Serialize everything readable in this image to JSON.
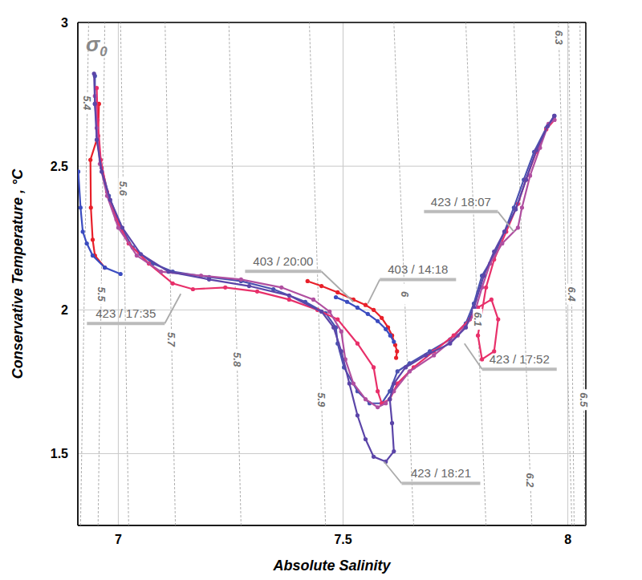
{
  "chart_data": {
    "type": "scatter",
    "x_label": "Absolute Salinity",
    "y_label": "Conservative Temperature , °C",
    "contour_label": "σ0",
    "xlim": [
      6.91,
      8.04
    ],
    "ylim": [
      1.25,
      3
    ],
    "xticks": [
      7,
      7.5,
      8
    ],
    "yticks": [
      1.5,
      2,
      2.5,
      3
    ],
    "grid": true,
    "isopycnals": [
      {
        "label": "5.4",
        "salinity": [
          6.916,
          6.934
        ],
        "temperature": [
          1.25,
          3
        ]
      },
      {
        "label": "5.5",
        "salinity": [
          6.955,
          6.97
        ],
        "temperature": [
          1.25,
          3
        ]
      },
      {
        "label": "5.6",
        "salinity": [
          7.023,
          7.005
        ],
        "temperature": [
          1.25,
          3
        ]
      },
      {
        "label": "5.7",
        "salinity": [
          7.127,
          7.104
        ],
        "temperature": [
          1.25,
          3
        ]
      },
      {
        "label": "5.8",
        "salinity": [
          7.273,
          7.246
        ],
        "temperature": [
          1.25,
          3
        ]
      },
      {
        "label": "5.9",
        "salinity": [
          7.461,
          7.425
        ],
        "temperature": [
          1.25,
          3
        ]
      },
      {
        "label": "6",
        "salinity": [
          7.657,
          7.613
        ],
        "temperature": [
          1.25,
          3
        ]
      },
      {
        "label": "6.1",
        "salinity": [
          7.818,
          7.773
        ],
        "temperature": [
          1.25,
          3
        ]
      },
      {
        "label": "6.2",
        "salinity": [
          7.92,
          7.88
        ],
        "temperature": [
          1.25,
          3
        ]
      },
      {
        "label": "6.3",
        "salinity": [
          8.009,
          7.979
        ],
        "temperature": [
          1.25,
          3
        ]
      },
      {
        "label": "6.4",
        "salinity": [
          8.014,
          8.002
        ],
        "temperature": [
          1.25,
          3
        ]
      },
      {
        "label": "6.5",
        "salinity": [
          8.038,
          8.027
        ],
        "temperature": [
          1.25,
          3
        ]
      }
    ],
    "series": [
      {
        "name": "403 / 14:18",
        "color": "#e8202a",
        "marker": "circle",
        "line_style": "solid",
        "callout": [
          7.555,
          2.022
        ],
        "values": [
          [
            6.957,
            2.717
          ],
          [
            6.955,
            2.606
          ],
          [
            6.938,
            2.522
          ],
          [
            6.939,
            2.356
          ],
          [
            6.943,
            2.244
          ],
          [
            6.948,
            2.189
          ],
          [
            6.97,
            2.147
          ],
          null,
          [
            7.421,
            2.1
          ],
          [
            7.452,
            2.083
          ],
          [
            7.488,
            2.061
          ],
          [
            7.523,
            2.036
          ],
          [
            7.55,
            2.017
          ],
          [
            7.568,
            2.0
          ],
          [
            7.586,
            1.972
          ],
          [
            7.6,
            1.939
          ],
          [
            7.609,
            1.911
          ],
          [
            7.616,
            1.878
          ],
          [
            7.62,
            1.856
          ],
          [
            7.618,
            1.833
          ]
        ]
      },
      {
        "name": "403 / 20:00",
        "color": "#3b4cc0",
        "marker": "circle",
        "line_style": "solid",
        "callout": [
          7.523,
          2.028
        ],
        "values": [
          [
            6.911,
            2.481
          ],
          [
            6.916,
            2.356
          ],
          [
            6.921,
            2.272
          ],
          [
            6.93,
            2.231
          ],
          [
            6.943,
            2.189
          ],
          [
            6.97,
            2.147
          ],
          [
            7.005,
            2.125
          ],
          null,
          [
            7.484,
            2.044
          ],
          [
            7.509,
            2.028
          ],
          [
            7.532,
            2.008
          ],
          [
            7.555,
            1.986
          ],
          [
            7.577,
            1.961
          ],
          [
            7.595,
            1.933
          ],
          [
            7.605,
            1.911
          ],
          [
            7.613,
            1.889
          ]
        ]
      },
      {
        "name": "423 / 17:35",
        "color": "#4a52b0",
        "marker": "circle",
        "line_style": "solid",
        "callout": [
          7.139,
          2.056
        ],
        "values": [
          [
            6.948,
            2.814
          ],
          [
            6.948,
            2.717
          ],
          [
            6.954,
            2.606
          ],
          [
            6.963,
            2.494
          ],
          [
            6.979,
            2.397
          ],
          [
            7.002,
            2.3
          ],
          [
            7.032,
            2.217
          ],
          [
            7.077,
            2.161
          ],
          [
            7.121,
            2.133
          ],
          [
            7.202,
            2.114
          ],
          [
            7.273,
            2.1
          ],
          [
            7.345,
            2.072
          ],
          [
            7.416,
            2.028
          ],
          [
            7.461,
            1.989
          ],
          [
            7.484,
            1.939
          ],
          [
            7.488,
            1.883
          ],
          [
            7.502,
            1.8
          ],
          [
            7.532,
            1.717
          ],
          [
            7.559,
            1.675
          ],
          [
            7.586,
            1.675
          ],
          [
            7.604,
            1.717
          ],
          [
            7.621,
            1.786
          ],
          [
            7.648,
            1.814
          ],
          [
            7.693,
            1.856
          ],
          [
            7.738,
            1.897
          ],
          [
            7.773,
            1.953
          ],
          [
            7.791,
            2.022
          ],
          [
            7.809,
            2.119
          ],
          [
            7.836,
            2.189
          ],
          [
            7.859,
            2.272
          ],
          [
            7.88,
            2.356
          ],
          [
            7.902,
            2.453
          ],
          [
            7.925,
            2.55
          ],
          [
            7.952,
            2.633
          ],
          [
            7.97,
            2.675
          ]
        ]
      },
      {
        "name": "423 / 17:52",
        "color": "#e8306a",
        "marker": "circle",
        "line_style": "solid",
        "callout": [
          7.77,
          1.883
        ],
        "values": [
          [
            6.952,
            2.772
          ],
          [
            6.954,
            2.661
          ],
          [
            6.961,
            2.522
          ],
          [
            6.975,
            2.411
          ],
          [
            6.996,
            2.314
          ],
          [
            7.023,
            2.231
          ],
          [
            7.068,
            2.161
          ],
          [
            7.121,
            2.092
          ],
          [
            7.166,
            2.072
          ],
          [
            7.238,
            2.078
          ],
          [
            7.309,
            2.064
          ],
          [
            7.38,
            2.036
          ],
          [
            7.443,
            2.0
          ],
          [
            7.488,
            1.967
          ],
          [
            7.532,
            1.883
          ],
          [
            7.568,
            1.8
          ],
          [
            7.577,
            1.717
          ],
          [
            7.586,
            1.675
          ],
          [
            7.604,
            1.689
          ],
          [
            7.621,
            1.744
          ],
          [
            7.657,
            1.8
          ],
          [
            7.702,
            1.856
          ],
          [
            7.746,
            1.911
          ],
          [
            7.782,
            1.967
          ],
          [
            7.8,
            2.008
          ],
          [
            7.83,
            2.036
          ],
          [
            7.845,
            1.967
          ],
          [
            7.836,
            1.856
          ],
          [
            7.809,
            1.828
          ],
          [
            7.8,
            1.911
          ],
          [
            7.818,
            2.078
          ],
          [
            7.836,
            2.175
          ],
          [
            7.863,
            2.272
          ],
          [
            7.889,
            2.369
          ],
          [
            7.907,
            2.453
          ],
          [
            7.93,
            2.55
          ],
          [
            7.952,
            2.628
          ],
          [
            7.97,
            2.661
          ]
        ]
      },
      {
        "name": "423 / 18:07",
        "color": "#b04fa0",
        "marker": "circle",
        "line_style": "solid",
        "callout": [
          7.88,
          2.272
        ],
        "values": [
          [
            6.948,
            2.744
          ],
          [
            6.952,
            2.633
          ],
          [
            6.959,
            2.508
          ],
          [
            6.975,
            2.397
          ],
          [
            7.0,
            2.286
          ],
          [
            7.041,
            2.189
          ],
          [
            7.095,
            2.133
          ],
          [
            7.184,
            2.119
          ],
          [
            7.273,
            2.106
          ],
          [
            7.363,
            2.078
          ],
          [
            7.434,
            2.036
          ],
          [
            7.47,
            1.994
          ],
          [
            7.496,
            1.925
          ],
          [
            7.505,
            1.828
          ],
          [
            7.523,
            1.744
          ],
          [
            7.55,
            1.689
          ],
          [
            7.577,
            1.661
          ],
          [
            7.595,
            1.675
          ],
          [
            7.613,
            1.717
          ],
          [
            7.648,
            1.786
          ],
          [
            7.702,
            1.842
          ],
          [
            7.755,
            1.911
          ],
          [
            7.791,
            1.981
          ],
          [
            7.809,
            2.078
          ],
          [
            7.827,
            2.161
          ],
          [
            7.854,
            2.231
          ],
          [
            7.889,
            2.286
          ],
          [
            7.898,
            2.356
          ],
          [
            7.916,
            2.467
          ],
          [
            7.938,
            2.564
          ],
          [
            7.957,
            2.647
          ],
          [
            7.97,
            2.661
          ]
        ]
      },
      {
        "name": "423 / 18:21",
        "color": "#5b45a8",
        "marker": "circle",
        "line_style": "solid",
        "callout": [
          7.591,
          1.472
        ],
        "values": [
          [
            6.946,
            2.822
          ],
          [
            6.948,
            2.717
          ],
          [
            6.952,
            2.592
          ],
          [
            6.963,
            2.481
          ],
          [
            6.982,
            2.383
          ],
          [
            7.009,
            2.286
          ],
          [
            7.05,
            2.194
          ],
          [
            7.112,
            2.133
          ],
          [
            7.202,
            2.106
          ],
          [
            7.291,
            2.083
          ],
          [
            7.38,
            2.05
          ],
          [
            7.452,
            1.994
          ],
          [
            7.479,
            1.939
          ],
          [
            7.496,
            1.856
          ],
          [
            7.514,
            1.744
          ],
          [
            7.532,
            1.633
          ],
          [
            7.55,
            1.55
          ],
          [
            7.568,
            1.489
          ],
          [
            7.595,
            1.472
          ],
          [
            7.613,
            1.508
          ],
          [
            7.609,
            1.606
          ],
          [
            7.604,
            1.689
          ],
          [
            7.613,
            1.744
          ],
          [
            7.639,
            1.8
          ],
          [
            7.684,
            1.842
          ],
          [
            7.738,
            1.883
          ],
          [
            7.773,
            1.939
          ],
          [
            7.791,
            2.008
          ],
          [
            7.813,
            2.119
          ],
          [
            7.836,
            2.203
          ],
          [
            7.859,
            2.272
          ],
          [
            7.884,
            2.35
          ],
          [
            7.907,
            2.453
          ],
          [
            7.93,
            2.556
          ],
          [
            7.955,
            2.639
          ],
          [
            7.97,
            2.675
          ]
        ]
      }
    ]
  }
}
